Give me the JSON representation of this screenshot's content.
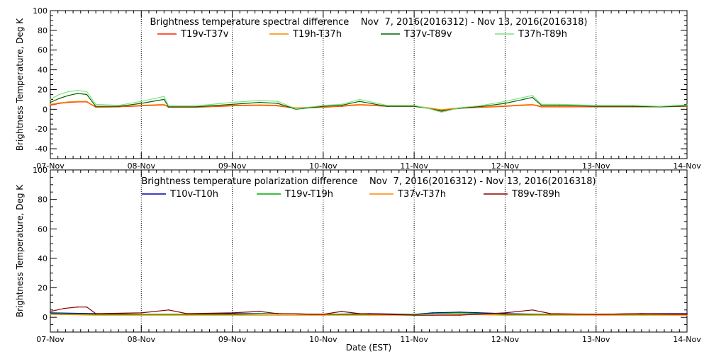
{
  "chart_data": [
    {
      "type": "line",
      "title": "Brightness temperature spectral difference    Nov  7, 2016(2016312) - Nov 13, 2016(2016318)",
      "ylabel": "Brightness Temperature, Deg K",
      "xlabel": "",
      "ylim": [
        -50,
        100
      ],
      "yticks": [
        -40,
        -20,
        0,
        20,
        40,
        60,
        80,
        100
      ],
      "xlim": [
        0,
        7
      ],
      "xtick_labels": [
        "07-Nov",
        "08-Nov",
        "09-Nov",
        "10-Nov",
        "11-Nov",
        "12-Nov",
        "13-Nov",
        "14-Nov"
      ],
      "grid": "vertical dotted at day boundaries",
      "legend_placement": "top",
      "series": [
        {
          "name": "T19v-T37v",
          "color": "#ff2200",
          "x": [
            0,
            0.1,
            0.2,
            0.3,
            0.4,
            0.5,
            0.75,
            1.0,
            1.25,
            1.3,
            1.6,
            2.0,
            2.3,
            2.5,
            2.7,
            3.0,
            3.2,
            3.4,
            3.7,
            4.0,
            4.15,
            4.3,
            4.5,
            4.75,
            5.0,
            5.2,
            5.3,
            5.4,
            5.6,
            6.0,
            6.4,
            6.7,
            7.0
          ],
          "y": [
            4,
            6,
            7,
            7.5,
            7.5,
            2,
            2.5,
            3.5,
            4.5,
            2,
            2,
            3.5,
            4,
            3.5,
            1,
            2,
            3,
            4.5,
            3,
            3,
            1,
            -1,
            1,
            2,
            3,
            4,
            4.5,
            2.5,
            2.5,
            2.5,
            2.5,
            2.5,
            3
          ]
        },
        {
          "name": "T19h-T37h",
          "color": "#ff8800",
          "x": [
            0,
            0.1,
            0.2,
            0.3,
            0.4,
            0.5,
            0.75,
            1.0,
            1.25,
            1.3,
            1.6,
            2.0,
            2.3,
            2.5,
            2.7,
            3.0,
            3.2,
            3.4,
            3.7,
            4.0,
            4.15,
            4.3,
            4.5,
            4.75,
            5.0,
            5.2,
            5.3,
            5.4,
            5.6,
            6.0,
            6.4,
            6.7,
            7.0
          ],
          "y": [
            5,
            6.5,
            7.5,
            8,
            8,
            2.5,
            3,
            4,
            5,
            2.5,
            2.5,
            4,
            4.5,
            4,
            1.5,
            2.5,
            3.5,
            5,
            3.5,
            3.5,
            1.5,
            -0.5,
            1.5,
            2.5,
            3.5,
            4.5,
            5,
            3,
            3,
            3,
            3,
            3,
            3.5
          ]
        },
        {
          "name": "T37v-T89v",
          "color": "#006400",
          "x": [
            0,
            0.1,
            0.2,
            0.3,
            0.4,
            0.5,
            0.75,
            1.0,
            1.25,
            1.3,
            1.6,
            2.0,
            2.3,
            2.5,
            2.7,
            3.0,
            3.2,
            3.4,
            3.7,
            4.0,
            4.15,
            4.3,
            4.5,
            4.75,
            5.0,
            5.2,
            5.3,
            5.4,
            5.6,
            6.0,
            6.4,
            6.7,
            7.0
          ],
          "y": [
            7,
            11,
            14,
            16,
            15,
            3,
            3,
            6,
            10,
            2.5,
            2.5,
            5,
            7,
            6,
            0,
            3,
            4,
            8,
            3,
            3,
            1,
            -2,
            1,
            3,
            6,
            10,
            12,
            4,
            4,
            3,
            3,
            2.5,
            3.5
          ]
        },
        {
          "name": "T37h-T89h",
          "color": "#7ee27e",
          "x": [
            0,
            0.1,
            0.2,
            0.3,
            0.4,
            0.5,
            0.75,
            1.0,
            1.25,
            1.3,
            1.6,
            2.0,
            2.3,
            2.5,
            2.7,
            3.0,
            3.2,
            3.4,
            3.7,
            4.0,
            4.15,
            4.3,
            4.5,
            4.75,
            5.0,
            5.2,
            5.3,
            5.4,
            5.6,
            6.0,
            6.4,
            6.7,
            7.0
          ],
          "y": [
            10,
            15,
            18,
            19,
            18,
            5,
            4,
            8,
            13,
            3.5,
            3.5,
            7,
            9,
            8,
            0.5,
            4,
            5,
            10,
            4,
            4,
            1,
            -3,
            1.5,
            4,
            8,
            12,
            14,
            5,
            5,
            4,
            4,
            3,
            4.5
          ]
        }
      ]
    },
    {
      "type": "line",
      "title": "Brightness temperature polarization difference    Nov  7, 2016(2016312) - Nov 13, 2016(2016318)",
      "ylabel": "Brightness Temperature, Deg K",
      "xlabel": "Date (EST)",
      "ylim": [
        -10,
        100
      ],
      "yticks": [
        0,
        20,
        40,
        60,
        80,
        100
      ],
      "xlim": [
        0,
        7
      ],
      "xtick_labels": [
        "07-Nov",
        "08-Nov",
        "09-Nov",
        "10-Nov",
        "11-Nov",
        "12-Nov",
        "13-Nov",
        "14-Nov"
      ],
      "grid": "vertical dotted at day boundaries",
      "legend_placement": "top",
      "series": [
        {
          "name": "T10v-T10h",
          "color": "#0000aa",
          "x": [
            0,
            0.5,
            1.0,
            1.5,
            2.0,
            2.5,
            3.0,
            3.5,
            4.0,
            4.2,
            4.5,
            5.0,
            5.5,
            6.0,
            6.5,
            7.0
          ],
          "y": [
            3,
            2.5,
            2,
            2,
            2.5,
            2.5,
            2,
            2.5,
            2,
            3,
            3.5,
            2.5,
            2,
            2,
            2.5,
            2.5
          ]
        },
        {
          "name": "T19v-T19h",
          "color": "#00aa00",
          "x": [
            0,
            0.5,
            1.0,
            1.5,
            2.0,
            2.5,
            3.0,
            3.5,
            4.0,
            4.2,
            4.5,
            5.0,
            5.5,
            6.0,
            6.5,
            7.0
          ],
          "y": [
            2.5,
            2,
            2,
            2,
            2,
            2.5,
            2,
            2,
            2,
            2.5,
            3,
            2,
            2,
            2,
            2,
            2
          ]
        },
        {
          "name": "T37v-T37h",
          "color": "#ff8800",
          "x": [
            0,
            0.5,
            1.0,
            1.5,
            2.0,
            2.5,
            3.0,
            3.5,
            4.0,
            4.2,
            4.5,
            5.0,
            5.5,
            6.0,
            6.5,
            7.0
          ],
          "y": [
            2,
            1.5,
            1.5,
            1.5,
            1.5,
            1.5,
            1.5,
            1.5,
            1.5,
            1.5,
            2,
            1.5,
            1.5,
            1.5,
            1.5,
            1.5
          ]
        },
        {
          "name": "T89v-T89h",
          "color": "#8b0000",
          "x": [
            0,
            0.15,
            0.3,
            0.4,
            0.5,
            1.0,
            1.3,
            1.5,
            2.0,
            2.3,
            2.5,
            3.0,
            3.2,
            3.4,
            4.0,
            4.5,
            5.0,
            5.3,
            5.5,
            6.0,
            6.5,
            7.0
          ],
          "y": [
            4,
            6,
            7,
            7,
            2.5,
            3,
            5,
            2.5,
            3,
            4,
            2.5,
            2,
            4,
            2.5,
            1.5,
            1.5,
            3,
            5,
            2.5,
            2,
            2.5,
            2
          ]
        }
      ]
    }
  ]
}
